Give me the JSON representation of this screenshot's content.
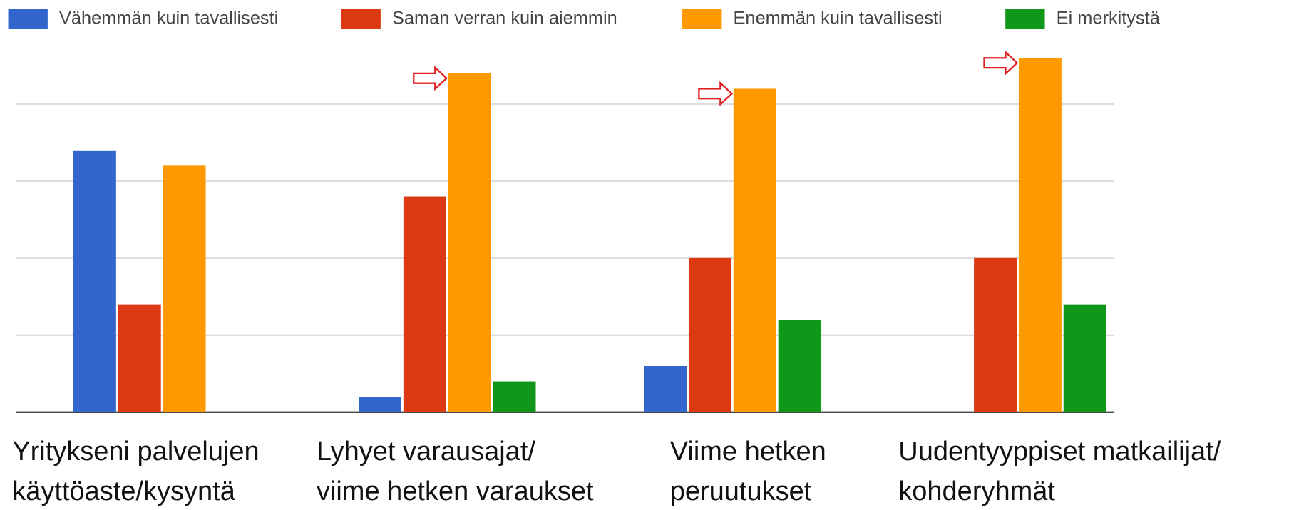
{
  "chart_data": {
    "type": "bar",
    "categories": [
      "Yritykseni palvelujen\nkäyttöaste/kysyntä",
      "Lyhyet varausajat/\nviime hetken varaukset",
      "Viime hetken\nperuutukset",
      "Uudentyyppiset matkailijat/\nkohderyhmät"
    ],
    "series": [
      {
        "name": "Vähemmän kuin tavallisesti",
        "color": "#3366cc",
        "values": [
          17,
          1,
          3,
          null
        ]
      },
      {
        "name": "Saman verran kuin aiemmin",
        "color": "#dc3912",
        "values": [
          7,
          14,
          10,
          10
        ]
      },
      {
        "name": "Enemmän kuin tavallisesti",
        "color": "#ff9900",
        "values": [
          16,
          22,
          21,
          23
        ]
      },
      {
        "name": "Ei merkitystä",
        "color": "#109618",
        "values": [
          null,
          2,
          6,
          7
        ]
      }
    ],
    "ylim": [
      0,
      25
    ],
    "yticks": [
      0,
      5,
      10,
      15,
      20
    ],
    "grid": true,
    "legend": "top"
  }
}
